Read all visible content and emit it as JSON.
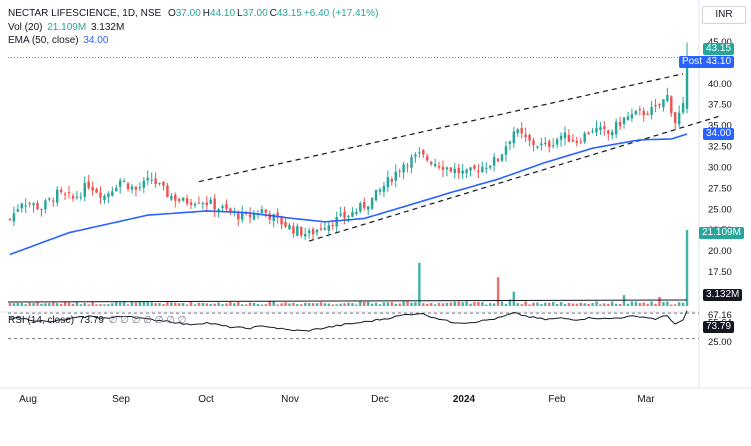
{
  "header": {
    "symbol": "NECTAR LIFESCIENCE, 1D, NSE",
    "ohlc": [
      {
        "key": "O",
        "value": "37.00"
      },
      {
        "key": "H",
        "value": "44.10"
      },
      {
        "key": "L",
        "value": "37.00"
      },
      {
        "key": "C",
        "value": "43.15"
      },
      {
        "key": "",
        "value": "+6.40 (+17.41%)"
      }
    ],
    "vol_label": "Vol (20)",
    "vol_val_1": "21.109M",
    "vol_val_2": "3.132M",
    "ema_label": "EMA (50, close)",
    "ema_val": "34.00",
    "rsi_label": "RSI (14, close)",
    "rsi_val": "73.79",
    "rsi_extra": "∅ ∅ ∅ ∅ ∅ ∅ ∅"
  },
  "currency": "INR",
  "badges": {
    "last_price": "43.15",
    "post_label": "Post",
    "post_price": "43.10",
    "ema_price": "34.00",
    "vol_big": "21.109M",
    "vol_small": "3.132M",
    "rsi_value": "73.79"
  },
  "colors": {
    "up": "#26a69a",
    "down": "#ef5350",
    "ema": "#2962ff",
    "badge_last": "#26a69a",
    "badge_post": "#2962ff",
    "badge_ema": "#2962ff",
    "badge_vol": "#26a69a",
    "badge_dark": "#131722",
    "rsi_line": "#131722"
  },
  "chart_data": {
    "type": "candlestick",
    "price_axis": {
      "ticks": [
        "45.00",
        "42.50",
        "40.00",
        "37.50",
        "35.00",
        "32.50",
        "30.00",
        "27.50",
        "25.00",
        "22.50",
        "20.00",
        "17.50"
      ],
      "min": 17.5,
      "max": 45.0
    },
    "rsi_axis": {
      "ticks": [
        "67.16",
        "55.64",
        "25.00"
      ],
      "upper": 70,
      "lower": 30
    },
    "time_axis": [
      "Aug",
      "Sep",
      "Oct",
      "Nov",
      "Dec",
      "2024",
      "Feb",
      "Mar"
    ],
    "price_waypoints": [
      [
        0,
        23.8
      ],
      [
        3,
        26.0
      ],
      [
        8,
        25.2
      ],
      [
        12,
        26.8
      ],
      [
        16,
        26.2
      ],
      [
        20,
        28.0
      ],
      [
        24,
        26.6
      ],
      [
        28,
        28.5
      ],
      [
        32,
        27.3
      ],
      [
        36,
        28.6
      ],
      [
        40,
        26.8
      ],
      [
        44,
        25.9
      ],
      [
        48,
        26.2
      ],
      [
        52,
        25.4
      ],
      [
        56,
        24.6
      ],
      [
        60,
        24.0
      ],
      [
        64,
        24.9
      ],
      [
        68,
        23.7
      ],
      [
        72,
        22.6
      ],
      [
        76,
        22.0
      ],
      [
        80,
        23.2
      ],
      [
        84,
        23.9
      ],
      [
        88,
        24.8
      ],
      [
        92,
        26.2
      ],
      [
        96,
        28.3
      ],
      [
        100,
        30.5
      ],
      [
        104,
        31.4
      ],
      [
        108,
        30.6
      ],
      [
        112,
        29.8
      ],
      [
        116,
        29.2
      ],
      [
        120,
        30.1
      ],
      [
        124,
        31.0
      ],
      [
        128,
        34.4
      ],
      [
        132,
        33.0
      ],
      [
        136,
        32.5
      ],
      [
        140,
        33.8
      ],
      [
        144,
        33.2
      ],
      [
        148,
        34.6
      ],
      [
        152,
        34.0
      ],
      [
        156,
        35.8
      ],
      [
        160,
        36.5
      ],
      [
        164,
        36.9
      ],
      [
        167,
        38.5
      ],
      [
        169,
        35.5
      ],
      [
        171,
        37.2
      ],
      [
        172,
        43.15
      ]
    ],
    "ema_waypoints": [
      [
        0,
        19.6
      ],
      [
        15,
        22.2
      ],
      [
        35,
        24.3
      ],
      [
        50,
        24.8
      ],
      [
        60,
        24.6
      ],
      [
        70,
        24.0
      ],
      [
        80,
        23.5
      ],
      [
        90,
        23.9
      ],
      [
        100,
        25.3
      ],
      [
        112,
        27.0
      ],
      [
        124,
        28.6
      ],
      [
        136,
        30.6
      ],
      [
        148,
        32.3
      ],
      [
        160,
        33.3
      ],
      [
        168,
        33.4
      ],
      [
        172,
        34.0
      ]
    ],
    "volume_spikes": [
      [
        104,
        12
      ],
      [
        124,
        8
      ],
      [
        127,
        1.8
      ],
      [
        128,
        4
      ],
      [
        156,
        3
      ],
      [
        165,
        2.5
      ],
      [
        172,
        21.109
      ]
    ],
    "rsi_waypoints": [
      [
        0,
        64
      ],
      [
        5,
        60
      ],
      [
        10,
        56
      ],
      [
        15,
        61
      ],
      [
        20,
        65
      ],
      [
        25,
        62
      ],
      [
        30,
        66
      ],
      [
        35,
        60
      ],
      [
        40,
        58
      ],
      [
        45,
        52
      ],
      [
        50,
        55
      ],
      [
        55,
        49
      ],
      [
        60,
        46
      ],
      [
        65,
        50
      ],
      [
        70,
        44
      ],
      [
        75,
        42
      ],
      [
        80,
        47
      ],
      [
        85,
        52
      ],
      [
        90,
        56
      ],
      [
        95,
        61
      ],
      [
        100,
        67
      ],
      [
        104,
        70
      ],
      [
        108,
        63
      ],
      [
        112,
        56
      ],
      [
        116,
        55
      ],
      [
        120,
        58
      ],
      [
        124,
        62
      ],
      [
        128,
        70
      ],
      [
        132,
        64
      ],
      [
        136,
        60
      ],
      [
        140,
        62
      ],
      [
        144,
        60
      ],
      [
        148,
        63
      ],
      [
        152,
        61
      ],
      [
        156,
        64
      ],
      [
        160,
        65
      ],
      [
        164,
        61
      ],
      [
        167,
        66
      ],
      [
        169,
        53
      ],
      [
        171,
        58
      ],
      [
        172,
        73.79
      ]
    ],
    "trendlines": [
      {
        "from": [
          48,
          28.3
        ],
        "to": [
          171,
          41.2
        ]
      },
      {
        "from": [
          76,
          21.2
        ],
        "to": [
          180,
          36.1
        ]
      }
    ],
    "bars": 173
  }
}
